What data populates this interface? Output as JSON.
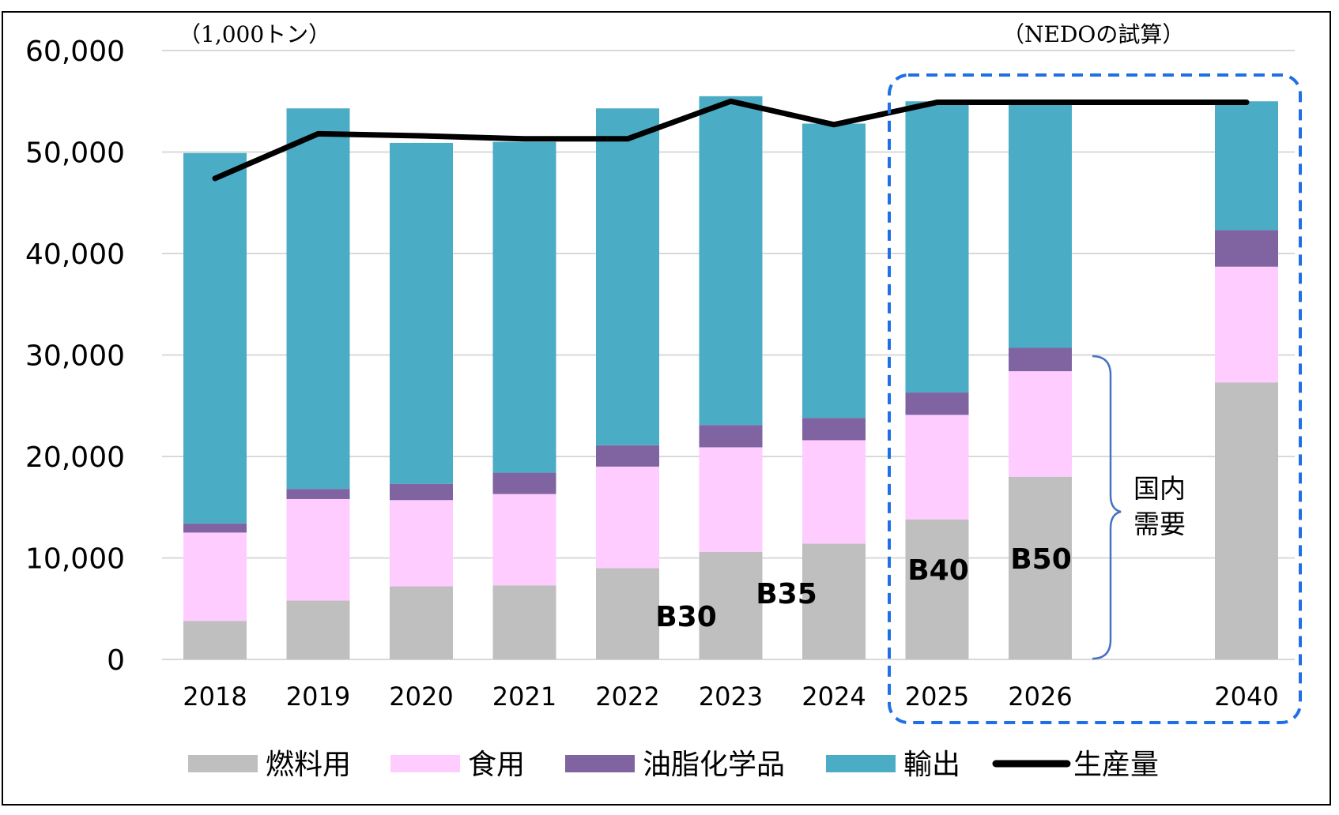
{
  "chart_data": {
    "type": "bar",
    "stacked": true,
    "unit_label": "（1,000トン）",
    "projection_label": "（NEDOの試算）",
    "categories": [
      "2018",
      "2019",
      "2020",
      "2021",
      "2022",
      "2023",
      "2024",
      "2025",
      "2026",
      "2040"
    ],
    "category_slots": [
      0,
      1,
      2,
      3,
      4,
      5,
      6,
      7,
      8,
      10
    ],
    "ylim": [
      0,
      60000
    ],
    "yticks": [
      "0",
      "10,000",
      "20,000",
      "30,000",
      "40,000",
      "50,000",
      "60,000"
    ],
    "ytick_values": [
      0,
      10000,
      20000,
      30000,
      40000,
      50000,
      60000
    ],
    "grid": true,
    "series": [
      {
        "name": "燃料用",
        "kind": "bar",
        "color": "#BFBFBF",
        "values": [
          3800,
          5800,
          7200,
          7300,
          9000,
          10600,
          11400,
          13800,
          18000,
          27300
        ]
      },
      {
        "name": "食用",
        "kind": "bar",
        "color": "#FFCCFF",
        "values": [
          8700,
          10000,
          8500,
          9000,
          10000,
          10300,
          10200,
          10300,
          10400,
          11400
        ]
      },
      {
        "name": "油脂化学品",
        "kind": "bar",
        "color": "#8064A2",
        "values": [
          900,
          1000,
          1600,
          2100,
          2100,
          2200,
          2200,
          2200,
          2300,
          3600
        ]
      },
      {
        "name": "輸出",
        "kind": "bar",
        "color": "#4BACC6",
        "values": [
          36500,
          37500,
          33600,
          32600,
          33200,
          32400,
          29000,
          28700,
          24100,
          12700
        ]
      },
      {
        "name": "生産量",
        "kind": "line",
        "color": "#000000",
        "values": [
          47400,
          51800,
          51600,
          51300,
          51300,
          55000,
          52700,
          54900,
          54900,
          54900
        ]
      }
    ],
    "annotations": {
      "blend_labels": [
        {
          "text": "B30",
          "at": "2022"
        },
        {
          "text": "B35",
          "at": "2023"
        },
        {
          "text": "B40",
          "at": "2025"
        },
        {
          "text": "B50",
          "at": "2026"
        }
      ],
      "domestic_demand_label": [
        "国内",
        "需要"
      ],
      "projection_range": [
        "2025",
        "2040"
      ]
    },
    "legend_position": "bottom"
  }
}
